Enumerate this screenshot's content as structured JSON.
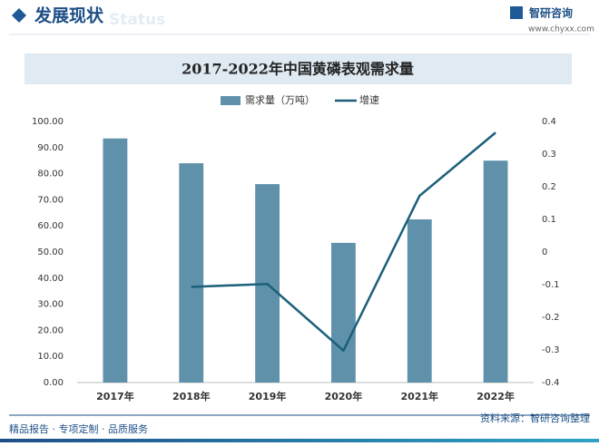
{
  "header": {
    "title": "发展现状",
    "subtitle": "Status",
    "brand": "智研咨询",
    "url": "www.chyxx.com"
  },
  "chart_data": {
    "type": "bar-line",
    "title": "2017-2022年中国黄磷表观需求量",
    "categories": [
      "2017年",
      "2018年",
      "2019年",
      "2020年",
      "2021年",
      "2022年"
    ],
    "series": [
      {
        "name": "需求量（万吨）",
        "color": "#5f92aa",
        "type": "bar",
        "values": [
          93.5,
          84,
          76,
          53.5,
          62.5,
          85
        ]
      },
      {
        "name": "增速",
        "color": "#1b5f7a",
        "type": "line",
        "axis": "y2",
        "values": [
          null,
          -0.107,
          -0.098,
          -0.302,
          0.172,
          0.366
        ]
      }
    ],
    "ylim": [
      0,
      100
    ],
    "yticks": [
      {
        "value": 0,
        "label": "0.00"
      },
      {
        "value": 10,
        "label": "10.00"
      },
      {
        "value": 20,
        "label": "20.00"
      },
      {
        "value": 30,
        "label": "30.00"
      },
      {
        "value": 40,
        "label": "40.00"
      },
      {
        "value": 50,
        "label": "50.00"
      },
      {
        "value": 60,
        "label": "60.00"
      },
      {
        "value": 70,
        "label": "70.00"
      },
      {
        "value": 80,
        "label": "80.00"
      },
      {
        "value": 90,
        "label": "90.00"
      },
      {
        "value": 100,
        "label": "100.00"
      }
    ],
    "y2lim": [
      -0.4,
      0.4
    ],
    "y2ticks": [
      -0.4,
      -0.3,
      -0.2,
      -0.1,
      0,
      0.1,
      0.2,
      0.3,
      0.4
    ]
  },
  "footer": {
    "left": "精品报告 · 专项定制 · 品质服务",
    "right": "资料来源：智研咨询整理"
  }
}
